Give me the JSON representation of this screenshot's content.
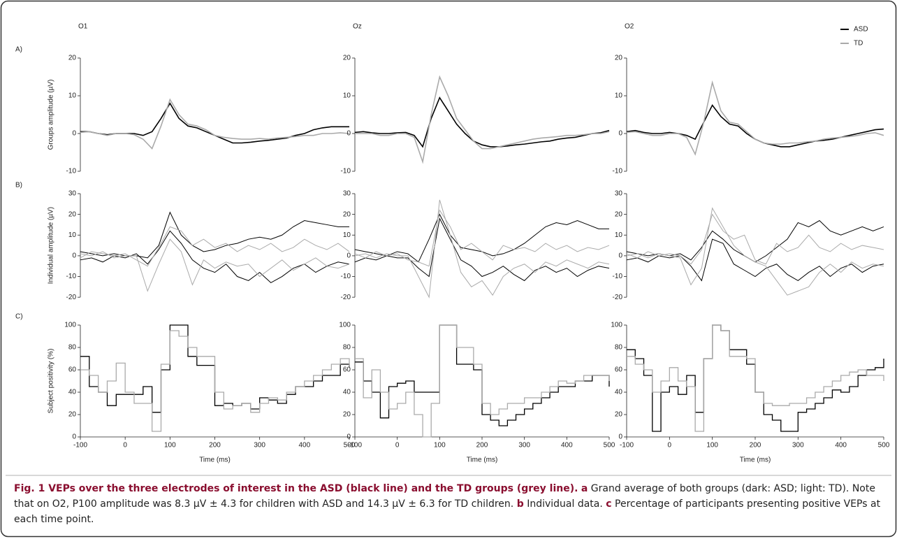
{
  "chart_data": [
    {
      "type": "line",
      "title": "O1",
      "panel_label": "A)",
      "ylabel": "Groups amplitude (µV)",
      "x": [
        -100,
        -80,
        -60,
        -40,
        -20,
        0,
        20,
        40,
        60,
        80,
        100,
        120,
        140,
        160,
        180,
        200,
        220,
        240,
        260,
        280,
        300,
        320,
        340,
        360,
        380,
        400,
        420,
        440,
        460,
        480,
        500
      ],
      "xlim": [
        -100,
        500
      ],
      "ylim": [
        -10,
        20
      ],
      "yticks": [
        -10,
        0,
        10,
        20
      ],
      "series": [
        {
          "color": "#000000",
          "values": [
            0.5,
            0.5,
            0,
            -0.3,
            0,
            0,
            0,
            -0.5,
            0.5,
            4,
            8,
            4,
            2,
            1.5,
            0.5,
            -0.5,
            -1.5,
            -2.5,
            -2.5,
            -2.3,
            -2,
            -1.8,
            -1.5,
            -1.2,
            -0.5,
            0,
            1,
            1.5,
            1.8,
            1.8,
            1.8
          ]
        },
        {
          "color": "#aaaaaa",
          "values": [
            0.3,
            0.5,
            0,
            -0.5,
            0,
            0,
            -0.3,
            -1.5,
            -4,
            2,
            9,
            5,
            2.5,
            2,
            1,
            -0.5,
            -1,
            -1.3,
            -1.5,
            -1.5,
            -1.3,
            -1.5,
            -1.2,
            -1,
            -0.8,
            -0.5,
            -0.5,
            0,
            0,
            0.2,
            0
          ]
        }
      ]
    },
    {
      "type": "line",
      "title": "Oz",
      "x": [
        -100,
        -80,
        -60,
        -40,
        -20,
        0,
        20,
        40,
        60,
        80,
        100,
        120,
        140,
        160,
        180,
        200,
        220,
        240,
        260,
        280,
        300,
        320,
        340,
        360,
        380,
        400,
        420,
        440,
        460,
        480,
        500
      ],
      "xlim": [
        -100,
        500
      ],
      "ylim": [
        -10,
        20
      ],
      "yticks": [
        -10,
        0,
        10,
        20
      ],
      "series": [
        {
          "color": "#000000",
          "values": [
            0.3,
            0.5,
            0.2,
            0,
            0,
            0.2,
            0.3,
            -0.5,
            -3.5,
            4,
            9.5,
            6,
            2.5,
            0,
            -2,
            -3,
            -3.5,
            -3.5,
            -3.3,
            -3,
            -2.8,
            -2.5,
            -2.2,
            -2,
            -1.5,
            -1.2,
            -1,
            -0.5,
            0,
            0.2,
            0.8
          ]
        },
        {
          "color": "#aaaaaa",
          "values": [
            0,
            0,
            0,
            -0.5,
            -0.5,
            0,
            0,
            -1,
            -7.5,
            5,
            15,
            10,
            4,
            1,
            -2,
            -4,
            -4,
            -3.5,
            -3,
            -2.5,
            -2,
            -1.5,
            -1.2,
            -1,
            -0.8,
            -0.5,
            -0.5,
            -0.3,
            0,
            0,
            0.5
          ]
        }
      ]
    },
    {
      "type": "line",
      "title": "O2",
      "legend": "top-right",
      "x": [
        -100,
        -80,
        -60,
        -40,
        -20,
        0,
        20,
        40,
        60,
        80,
        100,
        120,
        140,
        160,
        180,
        200,
        220,
        240,
        260,
        280,
        300,
        320,
        340,
        360,
        380,
        400,
        420,
        440,
        460,
        480,
        500
      ],
      "xlim": [
        -100,
        500
      ],
      "ylim": [
        -10,
        20
      ],
      "yticks": [
        -10,
        0,
        10,
        20
      ],
      "series": [
        {
          "name": "ASD",
          "color": "#000000",
          "values": [
            0.5,
            0.8,
            0.3,
            0,
            0,
            0.3,
            0,
            -0.5,
            -1.5,
            3,
            7.5,
            4.5,
            2.5,
            2,
            0,
            -1.5,
            -2.5,
            -3,
            -3.5,
            -3.5,
            -3,
            -2.5,
            -2,
            -1.8,
            -1.5,
            -1,
            -0.5,
            0,
            0.5,
            1,
            1.2
          ]
        },
        {
          "name": "TD",
          "color": "#aaaaaa",
          "values": [
            0.3,
            0.5,
            0,
            -0.5,
            -0.5,
            0,
            0,
            -1,
            -5.5,
            3,
            13.5,
            6,
            3,
            2.5,
            0.5,
            -1.5,
            -2.5,
            -2.8,
            -2.8,
            -2.5,
            -2.5,
            -2.2,
            -2,
            -1.5,
            -1.2,
            -1,
            -0.8,
            -0.5,
            0,
            0.2,
            -0.5
          ]
        }
      ]
    },
    {
      "type": "line",
      "panel_label": "B)",
      "ylabel": "Individual amplitude (µV)",
      "x": [
        -100,
        -75,
        -50,
        -25,
        0,
        25,
        50,
        75,
        100,
        125,
        150,
        175,
        200,
        225,
        250,
        275,
        300,
        325,
        350,
        375,
        400,
        425,
        450,
        475,
        500
      ],
      "xlim": [
        -100,
        500
      ],
      "ylim": [
        -24,
        30
      ],
      "yticks": [
        -20,
        -10,
        0,
        10,
        20,
        30
      ],
      "series": [
        {
          "color": "#000000",
          "values": [
            2,
            1,
            0,
            1,
            0,
            0,
            -1,
            5,
            21,
            10,
            5,
            2,
            3,
            5,
            6,
            8,
            9,
            8,
            10,
            14,
            17,
            16,
            15,
            14,
            14
          ]
        },
        {
          "color": "#000000",
          "values": [
            -2,
            -1,
            -3,
            0,
            -1,
            1,
            -4,
            3,
            12,
            6,
            -2,
            -6,
            -8,
            -4,
            -10,
            -12,
            -8,
            -13,
            -10,
            -6,
            -4,
            -8,
            -5,
            -3,
            -4
          ]
        },
        {
          "color": "#aaaaaa",
          "values": [
            1,
            0,
            2,
            -1,
            0,
            0,
            -17,
            -4,
            8,
            2,
            -14,
            -2,
            -6,
            -3,
            -5,
            -4,
            -10,
            -6,
            -2,
            -7,
            -4,
            -1,
            -5,
            -6,
            -4
          ]
        },
        {
          "color": "#aaaaaa",
          "values": [
            -1,
            2,
            1,
            0,
            1,
            -2,
            -5,
            4,
            14,
            12,
            5,
            8,
            4,
            6,
            2,
            5,
            3,
            6,
            2,
            4,
            8,
            5,
            3,
            6,
            2
          ]
        }
      ]
    },
    {
      "type": "line",
      "x": [
        -100,
        -75,
        -50,
        -25,
        0,
        25,
        50,
        75,
        100,
        125,
        150,
        175,
        200,
        225,
        250,
        275,
        300,
        325,
        350,
        375,
        400,
        425,
        450,
        475,
        500
      ],
      "xlim": [
        -100,
        500
      ],
      "ylim": [
        -24,
        30
      ],
      "yticks": [
        -20,
        -10,
        0,
        10,
        20,
        30
      ],
      "series": [
        {
          "color": "#000000",
          "values": [
            3,
            2,
            1,
            0,
            2,
            1,
            -3,
            8,
            20,
            10,
            4,
            3,
            2,
            0,
            1,
            3,
            6,
            10,
            14,
            16,
            15,
            17,
            15,
            13,
            13
          ]
        },
        {
          "color": "#000000",
          "values": [
            -3,
            -1,
            -2,
            0,
            -1,
            -1,
            -6,
            -10,
            18,
            8,
            -2,
            -5,
            -10,
            -8,
            -5,
            -9,
            -12,
            -7,
            -5,
            -8,
            -6,
            -10,
            -7,
            -5,
            -6
          ]
        },
        {
          "color": "#aaaaaa",
          "values": [
            0,
            1,
            -1,
            1,
            0,
            0,
            -10,
            -20,
            27,
            10,
            -8,
            -15,
            -12,
            -19,
            -10,
            -6,
            -4,
            -8,
            -3,
            -5,
            -2,
            -4,
            -6,
            -3,
            -4
          ]
        },
        {
          "color": "#aaaaaa",
          "values": [
            1,
            -1,
            2,
            0,
            1,
            -2,
            -3,
            -5,
            22,
            14,
            3,
            6,
            2,
            -2,
            5,
            3,
            4,
            2,
            6,
            3,
            5,
            2,
            4,
            3,
            5
          ]
        }
      ]
    },
    {
      "type": "line",
      "x": [
        -100,
        -75,
        -50,
        -25,
        0,
        25,
        50,
        75,
        100,
        125,
        150,
        175,
        200,
        225,
        250,
        275,
        300,
        325,
        350,
        375,
        400,
        425,
        450,
        475,
        500
      ],
      "xlim": [
        -100,
        500
      ],
      "ylim": [
        -24,
        30
      ],
      "yticks": [
        -20,
        -10,
        0,
        10,
        20,
        30
      ],
      "series": [
        {
          "color": "#000000",
          "values": [
            2,
            1,
            0,
            1,
            0,
            1,
            -2,
            4,
            12,
            8,
            3,
            0,
            -3,
            0,
            4,
            8,
            16,
            14,
            17,
            12,
            10,
            12,
            14,
            12,
            14
          ]
        },
        {
          "color": "#000000",
          "values": [
            -2,
            -1,
            -3,
            0,
            -1,
            0,
            -5,
            -12,
            8,
            6,
            -4,
            -7,
            -10,
            -6,
            -4,
            -9,
            -12,
            -8,
            -5,
            -10,
            -6,
            -4,
            -8,
            -5,
            -4
          ]
        },
        {
          "color": "#aaaaaa",
          "values": [
            0,
            1,
            -1,
            1,
            0,
            -1,
            -14,
            -6,
            23,
            14,
            5,
            0,
            -3,
            -5,
            -12,
            -19,
            -17,
            -15,
            -8,
            -4,
            -8,
            -3,
            -6,
            -4,
            -5
          ]
        },
        {
          "color": "#aaaaaa",
          "values": [
            1,
            -1,
            2,
            0,
            1,
            0,
            -4,
            3,
            20,
            12,
            8,
            10,
            -2,
            -4,
            6,
            2,
            4,
            10,
            4,
            2,
            6,
            3,
            5,
            4,
            3
          ]
        }
      ]
    },
    {
      "type": "step",
      "panel_label": "C)",
      "ylabel": "Subject positivity (%)",
      "xlabel": "Time (ms)",
      "x": [
        -100,
        -80,
        -60,
        -40,
        -20,
        0,
        20,
        40,
        60,
        80,
        100,
        120,
        140,
        160,
        180,
        200,
        220,
        240,
        260,
        280,
        300,
        320,
        340,
        360,
        380,
        400,
        420,
        440,
        460,
        480,
        500
      ],
      "xlim": [
        -100,
        500
      ],
      "xticks": [
        -100,
        0,
        100,
        200,
        300,
        400,
        500
      ],
      "ylim": [
        0,
        100
      ],
      "yticks": [
        0,
        20,
        40,
        60,
        80,
        100
      ],
      "series": [
        {
          "color": "#000000",
          "values": [
            72,
            45,
            40,
            28,
            38,
            38,
            38,
            45,
            22,
            60,
            100,
            100,
            72,
            64,
            64,
            28,
            30,
            28,
            30,
            25,
            35,
            33,
            30,
            38,
            45,
            45,
            50,
            55,
            55,
            65,
            62
          ]
        },
        {
          "color": "#aaaaaa",
          "values": [
            60,
            55,
            40,
            50,
            66,
            40,
            30,
            30,
            5,
            65,
            95,
            90,
            80,
            72,
            72,
            40,
            25,
            28,
            30,
            22,
            30,
            35,
            33,
            40,
            45,
            50,
            55,
            60,
            65,
            70,
            62
          ]
        }
      ]
    },
    {
      "type": "step",
      "xlabel": "Time (ms)",
      "x": [
        -100,
        -80,
        -60,
        -40,
        -20,
        0,
        20,
        40,
        60,
        80,
        100,
        120,
        140,
        160,
        180,
        200,
        220,
        240,
        260,
        280,
        300,
        320,
        340,
        360,
        380,
        400,
        420,
        440,
        460,
        480,
        500
      ],
      "xlim": [
        -100,
        500
      ],
      "xticks": [
        -100,
        0,
        100,
        200,
        300,
        400,
        500
      ],
      "ylim": [
        0,
        100
      ],
      "yticks": [
        0,
        20,
        40,
        60,
        80,
        100
      ],
      "series": [
        {
          "color": "#000000",
          "values": [
            67,
            50,
            40,
            17,
            45,
            48,
            50,
            40,
            40,
            40,
            100,
            100,
            65,
            65,
            60,
            20,
            15,
            10,
            15,
            20,
            25,
            30,
            35,
            40,
            45,
            45,
            50,
            50,
            55,
            55,
            45
          ]
        },
        {
          "color": "#aaaaaa",
          "values": [
            70,
            35,
            60,
            40,
            25,
            30,
            40,
            20,
            0,
            30,
            100,
            100,
            80,
            80,
            65,
            30,
            20,
            25,
            30,
            30,
            35,
            35,
            40,
            45,
            50,
            48,
            50,
            55,
            55,
            55,
            50
          ]
        }
      ]
    },
    {
      "type": "step",
      "xlabel": "Time (ms)",
      "x": [
        -100,
        -80,
        -60,
        -40,
        -20,
        0,
        20,
        40,
        60,
        80,
        100,
        120,
        140,
        160,
        180,
        200,
        220,
        240,
        260,
        280,
        300,
        320,
        340,
        360,
        380,
        400,
        420,
        440,
        460,
        480,
        500
      ],
      "xlim": [
        -100,
        500
      ],
      "xticks": [
        -100,
        0,
        100,
        200,
        300,
        400,
        500
      ],
      "ylim": [
        0,
        100
      ],
      "yticks": [
        0,
        20,
        40,
        60,
        80,
        100
      ],
      "series": [
        {
          "color": "#000000",
          "values": [
            78,
            70,
            55,
            5,
            40,
            45,
            38,
            55,
            22,
            70,
            100,
            95,
            78,
            78,
            65,
            40,
            20,
            15,
            5,
            5,
            22,
            25,
            30,
            35,
            42,
            40,
            45,
            55,
            60,
            62,
            70
          ]
        },
        {
          "color": "#aaaaaa",
          "values": [
            72,
            65,
            60,
            40,
            50,
            62,
            50,
            45,
            5,
            70,
            100,
            95,
            72,
            72,
            70,
            40,
            30,
            28,
            28,
            30,
            30,
            35,
            40,
            45,
            50,
            55,
            58,
            60,
            55,
            55,
            50
          ]
        }
      ]
    }
  ],
  "caption": {
    "title": "Fig. 1 VEPs over the three electrodes of interest in the ASD (black line) and the TD groups (grey line).",
    "parts": [
      {
        "letter": "a",
        "text": "Grand average of both groups (dark: ASD; light: TD). Note that on O2, P100 amplitude was 8.3 µV ± 4.3 for children with ASD and 14.3 µV ± 6.3 for TD children."
      },
      {
        "letter": "b",
        "text": "Individual data."
      },
      {
        "letter": "c",
        "text": "Percentage of participants presenting positive VEPs at each time point."
      }
    ]
  }
}
